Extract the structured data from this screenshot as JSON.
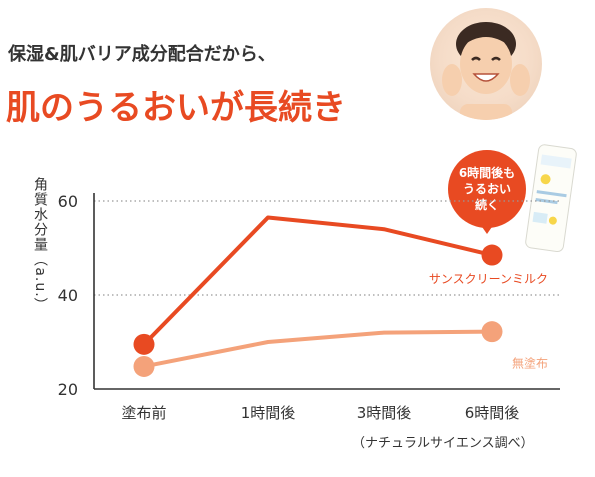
{
  "header": {
    "subtitle": "保湿&肌バリア成分配合だから、",
    "headline": "肌のうるおいが長続き"
  },
  "callout": {
    "lines": [
      "6時間後も",
      "うるおい",
      "続く"
    ]
  },
  "colors": {
    "accent": "#e84a22",
    "secondary": "#f4a27a",
    "grid": "#999999",
    "axis": "#333333"
  },
  "chart_data": {
    "type": "line",
    "categories": [
      "塗布前",
      "1時間後",
      "3時間後",
      "6時間後"
    ],
    "ylabel": "角質水分量（a.u.）",
    "xlabel": "",
    "ylim": [
      20,
      60
    ],
    "yticks": [
      20,
      40,
      60
    ],
    "grid": "dotted horizontal at 40 and 60",
    "series": [
      {
        "name": "サンスクリーンミルク",
        "values": [
          29.5,
          56.5,
          54,
          48.5
        ],
        "color": "#e84a22"
      },
      {
        "name": "無塗布",
        "values": [
          24.8,
          30,
          32,
          32.2
        ],
        "color": "#f4a27a"
      }
    ],
    "source_note": "（ナチュラルサイエンス調べ）"
  }
}
